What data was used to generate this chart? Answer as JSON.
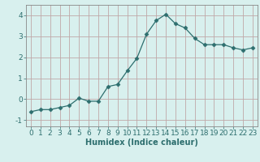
{
  "x": [
    0,
    1,
    2,
    3,
    4,
    5,
    6,
    7,
    8,
    9,
    10,
    11,
    12,
    13,
    14,
    15,
    16,
    17,
    18,
    19,
    20,
    21,
    22,
    23
  ],
  "y": [
    -0.6,
    -0.5,
    -0.5,
    -0.4,
    -0.3,
    0.05,
    -0.1,
    -0.1,
    0.6,
    0.7,
    1.35,
    1.95,
    3.1,
    3.75,
    4.05,
    3.6,
    3.4,
    2.9,
    2.6,
    2.6,
    2.6,
    2.45,
    2.35,
    2.45
  ],
  "line_color": "#2d6e6e",
  "marker": "D",
  "marker_size": 2.5,
  "bg_color": "#d8f0ee",
  "grid_color": "#c0a8a8",
  "xlabel": "Humidex (Indice chaleur)",
  "ylabel": "",
  "xlim": [
    -0.5,
    23.5
  ],
  "ylim": [
    -1.3,
    4.5
  ],
  "yticks": [
    -1,
    0,
    1,
    2,
    3,
    4
  ],
  "xticks": [
    0,
    1,
    2,
    3,
    4,
    5,
    6,
    7,
    8,
    9,
    10,
    11,
    12,
    13,
    14,
    15,
    16,
    17,
    18,
    19,
    20,
    21,
    22,
    23
  ],
  "axis_label_fontsize": 7,
  "tick_fontsize": 6.5
}
